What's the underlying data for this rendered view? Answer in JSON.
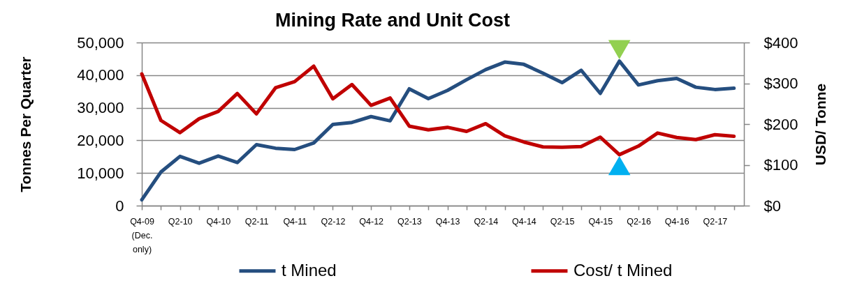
{
  "chart_data": {
    "type": "line",
    "title": "Mining Rate and Unit Cost",
    "ylabel": "Tonnes Per Quarter",
    "y2label": "USD/ Tonne",
    "categories": [
      "Q4-09 (Dec. only)",
      null,
      "Q2-10",
      null,
      "Q4-10",
      null,
      "Q2-11",
      null,
      "Q4-11",
      null,
      "Q2-12",
      null,
      "Q4-12",
      null,
      "Q2-13",
      null,
      "Q4-13",
      null,
      "Q2-14",
      null,
      "Q4-14",
      null,
      "Q2-15",
      null,
      "Q4-15",
      null,
      "Q2-16",
      null,
      "Q4-16",
      null,
      "Q2-17",
      null
    ],
    "series": [
      {
        "name": "t Mined",
        "color": "#254e7f",
        "values": [
          1800,
          10300,
          15100,
          13000,
          15200,
          13200,
          18700,
          17600,
          17200,
          19200,
          24900,
          25500,
          27300,
          26000,
          35800,
          32800,
          35300,
          38600,
          41700,
          44000,
          43300,
          40600,
          37700,
          41500,
          34400,
          44300,
          37000,
          38300,
          39000,
          36300,
          35600,
          36000
        ]
      },
      {
        "name": "Cost/ t Mined",
        "color": "#c00000",
        "axis": "y2",
        "values": [
          323,
          209,
          179,
          213,
          231,
          275,
          225,
          289,
          304,
          342,
          262,
          297,
          246,
          264,
          195,
          186,
          192,
          182,
          201,
          171,
          156,
          144,
          143,
          145,
          168,
          125,
          146,
          178,
          167,
          162,
          174,
          170
        ]
      },
      {
        "type": "scatter",
        "marker": "triangle-down",
        "color": "#92d050",
        "values": [
          null,
          null,
          null,
          null,
          null,
          null,
          null,
          null,
          null,
          null,
          null,
          null,
          null,
          null,
          null,
          null,
          null,
          null,
          null,
          null,
          null,
          null,
          null,
          null,
          null,
          47800,
          null,
          null,
          null,
          null,
          null,
          null
        ]
      },
      {
        "type": "scatter",
        "marker": "triangle",
        "color": "#00b0f0",
        "axis": "y2",
        "values": [
          null,
          null,
          null,
          null,
          null,
          null,
          null,
          null,
          null,
          null,
          null,
          null,
          null,
          null,
          null,
          null,
          null,
          null,
          null,
          null,
          null,
          null,
          null,
          null,
          null,
          98,
          null,
          null,
          null,
          null,
          null,
          null
        ]
      }
    ],
    "ylim": [
      0,
      50000
    ],
    "yticks": [
      {
        "value": 0,
        "label": "0"
      },
      {
        "value": 10000,
        "label": "10,000"
      },
      {
        "value": 20000,
        "label": "20,000"
      },
      {
        "value": 30000,
        "label": "30,000"
      },
      {
        "value": 40000,
        "label": "40,000"
      },
      {
        "value": 50000,
        "label": "50,000"
      }
    ],
    "y2lim": [
      0,
      400
    ],
    "y2ticks": [
      {
        "value": 0,
        "label": "$0"
      },
      {
        "value": 100,
        "label": "$100"
      },
      {
        "value": 200,
        "label": "$200"
      },
      {
        "value": 300,
        "label": "$300"
      },
      {
        "value": 400,
        "label": "$400"
      }
    ],
    "grid": "y",
    "legend": "bottom"
  }
}
